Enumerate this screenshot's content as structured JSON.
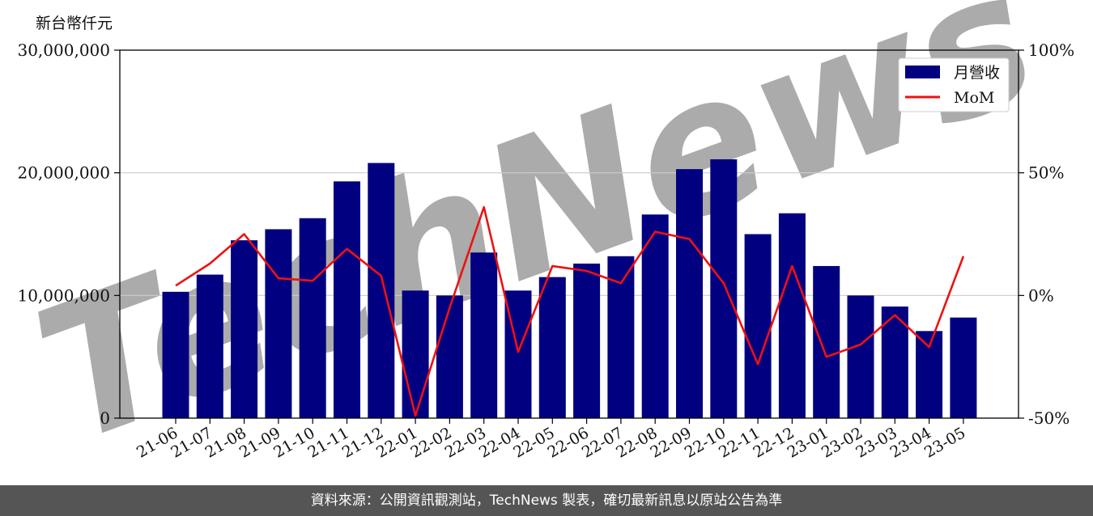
{
  "unit_label": "新台幣仟元",
  "footer": {
    "text": "資料來源：公開資訊觀測站，TechNews 製表，確切最新訊息以原站公告為準"
  },
  "watermark": {
    "text": "TechNews",
    "color": "#f3c8c8"
  },
  "colors": {
    "bar": "#000080",
    "line": "#ee1111",
    "grid": "#cccccc"
  },
  "chart_data": {
    "type": "bar",
    "categories": [
      "21-06",
      "21-07",
      "21-08",
      "21-09",
      "21-10",
      "21-11",
      "21-12",
      "22-01",
      "22-02",
      "22-03",
      "22-04",
      "22-05",
      "22-06",
      "22-07",
      "22-08",
      "22-09",
      "22-10",
      "22-11",
      "22-12",
      "23-01",
      "23-02",
      "23-03",
      "23-04",
      "23-05"
    ],
    "series": [
      {
        "name": "月營收",
        "type": "bar",
        "axis": "left",
        "values": [
          10300000,
          11700000,
          14500000,
          15400000,
          16300000,
          19300000,
          20800000,
          10400000,
          10000000,
          13500000,
          10400000,
          11500000,
          12600000,
          13200000,
          16600000,
          20300000,
          21100000,
          15000000,
          16700000,
          12400000,
          10000000,
          9100000,
          7100000,
          8200000
        ]
      },
      {
        "name": "MoM",
        "type": "line",
        "axis": "right",
        "values": [
          4,
          13,
          25,
          7,
          6,
          19,
          8,
          -49,
          -5,
          36,
          -23,
          12,
          10,
          5,
          26,
          23,
          5,
          -28,
          12,
          -25,
          -20,
          -8,
          -21,
          16
        ]
      }
    ],
    "y_left": {
      "lim": [
        0,
        30000000
      ],
      "ticks": [
        0,
        10000000,
        20000000,
        30000000
      ],
      "tick_labels": [
        "0",
        "10,000,000",
        "20,000,000",
        "30,000,000"
      ]
    },
    "y_right": {
      "lim": [
        -50,
        100
      ],
      "ticks": [
        -50,
        0,
        50,
        100
      ],
      "tick_labels": [
        "-50%",
        "0%",
        "50%",
        "100%"
      ]
    },
    "grid": true,
    "legend": "top-right"
  }
}
